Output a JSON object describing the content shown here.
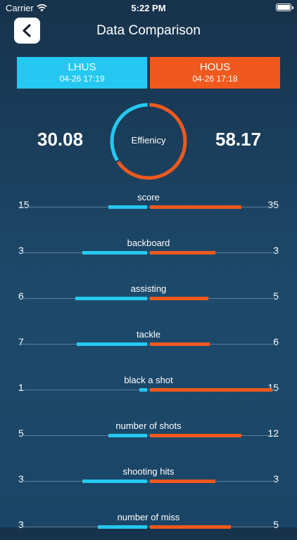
{
  "status": {
    "carrier": "Carrier",
    "time": "5:22 PM"
  },
  "header": {
    "title": "Data Comparison"
  },
  "teams": {
    "left": {
      "name": "LHUS",
      "datetime": "04-26 17:19",
      "color": "#25c8f0"
    },
    "right": {
      "name": "HOUS",
      "datetime": "04-26 17:18",
      "color": "#f0591e"
    }
  },
  "efficiency": {
    "label": "Effienicy",
    "left": "30.08",
    "right": "58.17",
    "left_value": 30.08,
    "right_value": 58.17
  },
  "stats": [
    {
      "name": "score",
      "left": 15,
      "right": 35,
      "left_frac": 0.3,
      "right_frac": 0.7
    },
    {
      "name": "backboard",
      "left": 3,
      "right": 3,
      "left_frac": 0.5,
      "right_frac": 0.5
    },
    {
      "name": "assisting",
      "left": 6,
      "right": 5,
      "left_frac": 0.55,
      "right_frac": 0.45
    },
    {
      "name": "tackle",
      "left": 7,
      "right": 6,
      "left_frac": 0.54,
      "right_frac": 0.46
    },
    {
      "name": "black a shot",
      "left": 1,
      "right": 15,
      "left_frac": 0.06,
      "right_frac": 0.94
    },
    {
      "name": "number of shots",
      "left": 5,
      "right": 12,
      "left_frac": 0.3,
      "right_frac": 0.7
    },
    {
      "name": "shooting hits",
      "left": 3,
      "right": 3,
      "left_frac": 0.5,
      "right_frac": 0.5
    },
    {
      "name": "number of miss",
      "left": 3,
      "right": 5,
      "left_frac": 0.38,
      "right_frac": 0.62
    }
  ]
}
